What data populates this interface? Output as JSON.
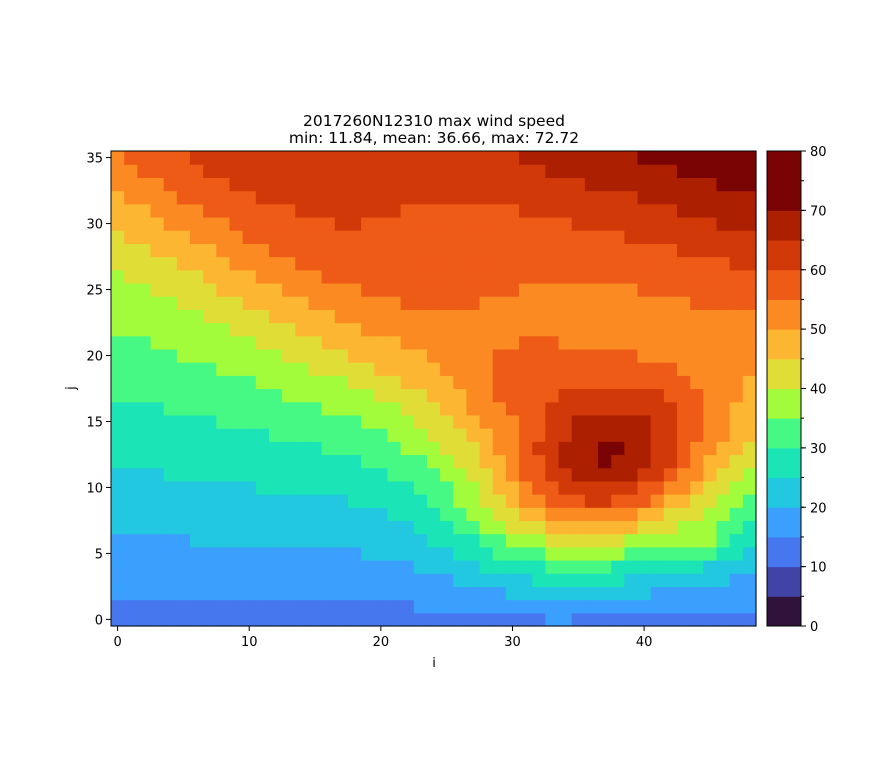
{
  "chart_data": {
    "type": "heatmap",
    "title": "2017260N12310 max wind speed",
    "subtitle": "min: 11.84, mean: 36.66, max: 72.72",
    "xlabel": "i",
    "ylabel": "j",
    "xlim": [
      -0.5,
      48.5
    ],
    "ylim": [
      -0.5,
      35.5
    ],
    "x_ticks": [
      "0",
      "10",
      "20",
      "30",
      "40"
    ],
    "y_ticks": [
      "0",
      "5",
      "10",
      "15",
      "20",
      "25",
      "30",
      "35"
    ],
    "grid": false,
    "colorbar": {
      "ticks": [
        "0",
        "10",
        "20",
        "30",
        "40",
        "50",
        "60",
        "70",
        "80"
      ],
      "range": [
        0,
        80
      ],
      "levels": [
        0,
        5,
        10,
        15,
        20,
        25,
        30,
        35,
        40,
        45,
        50,
        55,
        60,
        65,
        70,
        75,
        80
      ],
      "colors": [
        "#30123b",
        "#4143a7",
        "#4777ef",
        "#3ba0fd",
        "#22c7e0",
        "#1be4b6",
        "#46f884",
        "#a2fc3c",
        "#e1dd37",
        "#fdb632",
        "#fb8a22",
        "#ee5b16",
        "#d13a08",
        "#ac1f01",
        "#7a0403",
        "#7a0403"
      ]
    },
    "field": {
      "nx": 49,
      "ny": 36,
      "centers": [
        {
          "i": 37,
          "j": 11.5,
          "a": 4.5,
          "b": 3.0,
          "angle_deg": 25,
          "amp": 32
        },
        {
          "i": 44.5,
          "j": 6.0,
          "a": 1.0,
          "b": 0.7,
          "angle_deg": 0,
          "amp": 6
        },
        {
          "i": 30,
          "j": 18,
          "a": 2.5,
          "b": 1.5,
          "angle_deg": 20,
          "amp": 4
        }
      ],
      "ridge_axis_deg": 142,
      "note_hidden": ""
    }
  }
}
